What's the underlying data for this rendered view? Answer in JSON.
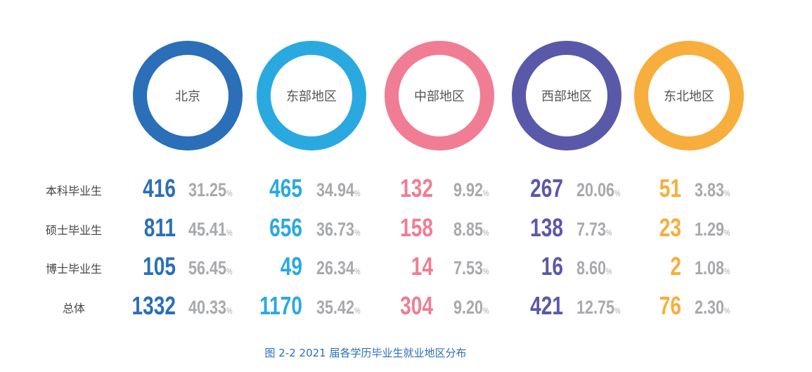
{
  "chart_data": {
    "type": "table",
    "title": "图 2-2  2021 届各学历毕业生就业地区分布",
    "categories": [
      "北京",
      "东部地区",
      "中部地区",
      "西部地区",
      "东北地区"
    ],
    "colors": [
      "#2a6fb8",
      "#2aa9e0",
      "#f07d94",
      "#5a58a8",
      "#f7ae3c"
    ],
    "percent_color": "#a7a9ac",
    "percent_unit": "%",
    "rows": [
      {
        "label": "本科毕业生",
        "counts": [
          "416",
          "465",
          "132",
          "267",
          "51"
        ],
        "percents": [
          "31.25",
          "34.94",
          "9.92",
          "20.06",
          "3.83"
        ]
      },
      {
        "label": "硕士毕业生",
        "counts": [
          "811",
          "656",
          "158",
          "138",
          "23"
        ],
        "percents": [
          "45.41",
          "36.73",
          "8.85",
          "7.73",
          "1.29"
        ]
      },
      {
        "label": "博士毕业生",
        "counts": [
          "105",
          "49",
          "14",
          "16",
          "2"
        ],
        "percents": [
          "56.45",
          "26.34",
          "7.53",
          "8.60",
          "1.08"
        ]
      },
      {
        "label": "总体",
        "counts": [
          "1332",
          "1170",
          "304",
          "421",
          "76"
        ],
        "percents": [
          "40.33",
          "35.42",
          "9.20",
          "12.75",
          "2.30"
        ]
      }
    ]
  }
}
